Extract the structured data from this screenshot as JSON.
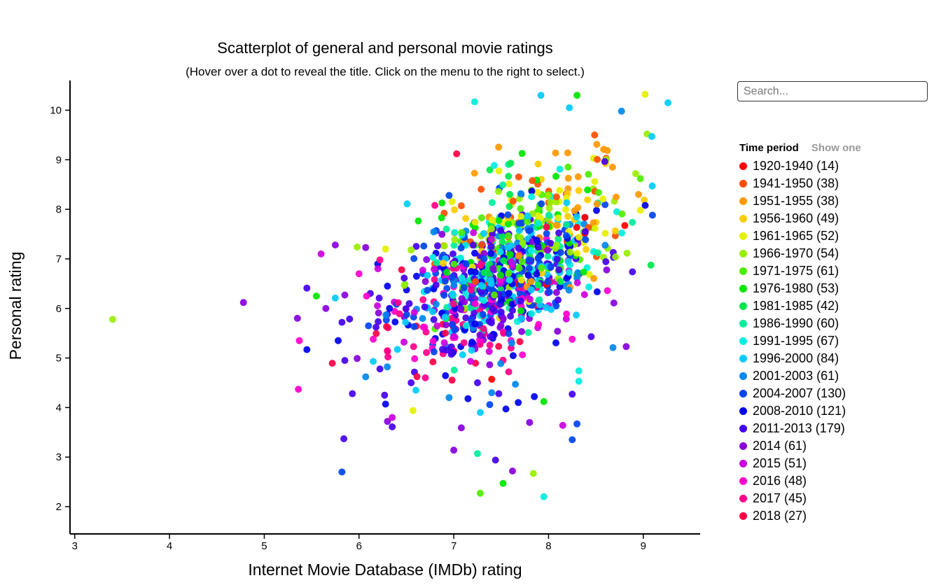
{
  "search": {
    "placeholder": "Search..."
  },
  "legend": {
    "title": "Time period",
    "show_one_label": "Show one"
  },
  "chart_data": {
    "type": "scatter",
    "title": "Scatterplot of general and personal movie ratings",
    "subtitle": "(Hover over a dot to reveal the title. Click on the menu to the right to select.)",
    "xlabel": "Internet Movie Database (IMDb) rating",
    "ylabel": "Personal rating",
    "xlim": [
      2.95,
      9.6
    ],
    "ylim": [
      1.45,
      10.6
    ],
    "x_ticks": [
      3,
      4,
      5,
      6,
      7,
      8,
      9
    ],
    "y_ticks": [
      2,
      3,
      4,
      5,
      6,
      7,
      8,
      9,
      10
    ],
    "grid": false,
    "legend_position": "right",
    "series": [
      {
        "label": "1920-1940 (14)",
        "color": "#ff0000",
        "count": 14
      },
      {
        "label": "1941-1950 (38)",
        "color": "#ff4d00",
        "count": 38
      },
      {
        "label": "1951-1955 (38)",
        "color": "#ff9900",
        "count": 38
      },
      {
        "label": "1956-1960 (49)",
        "color": "#ffcc00",
        "count": 49
      },
      {
        "label": "1961-1965 (52)",
        "color": "#e6f000",
        "count": 52
      },
      {
        "label": "1966-1970 (54)",
        "color": "#99ee00",
        "count": 54
      },
      {
        "label": "1971-1975 (61)",
        "color": "#4dee00",
        "count": 61
      },
      {
        "label": "1976-1980 (53)",
        "color": "#00e600",
        "count": 53
      },
      {
        "label": "1981-1985 (42)",
        "color": "#00e64d",
        "count": 42
      },
      {
        "label": "1986-1990 (60)",
        "color": "#00ee99",
        "count": 60
      },
      {
        "label": "1991-1995 (67)",
        "color": "#00eedd",
        "count": 67
      },
      {
        "label": "1996-2000 (84)",
        "color": "#00ccff",
        "count": 84
      },
      {
        "label": "2001-2003 (61)",
        "color": "#0088ee",
        "count": 61
      },
      {
        "label": "2004-2007 (130)",
        "color": "#0044ee",
        "count": 130
      },
      {
        "label": "2008-2010 (121)",
        "color": "#0000ee",
        "count": 121
      },
      {
        "label": "2011-2013 (179)",
        "color": "#4400ee",
        "count": 179
      },
      {
        "label": "2014 (61)",
        "color": "#8800dd",
        "count": 61
      },
      {
        "label": "2015 (51)",
        "color": "#cc00dd",
        "count": 51
      },
      {
        "label": "2016 (48)",
        "color": "#ff00cc",
        "count": 48
      },
      {
        "label": "2017 (45)",
        "color": "#ff0088",
        "count": 45
      },
      {
        "label": "2018 (27)",
        "color": "#ff0044",
        "count": 27
      }
    ],
    "points": [
      [
        3.4,
        5.78,
        5
      ],
      [
        4.78,
        6.12,
        16
      ],
      [
        5.36,
        4.37,
        18
      ],
      [
        5.82,
        2.7,
        13
      ],
      [
        5.84,
        3.37,
        15
      ],
      [
        7.22,
        10.17,
        10
      ],
      [
        7.92,
        10.3,
        11
      ],
      [
        8.3,
        10.3,
        7
      ],
      [
        9.02,
        10.32,
        4
      ],
      [
        9.26,
        10.15,
        11
      ],
      [
        8.77,
        9.98,
        12
      ],
      [
        8.22,
        10.05,
        11
      ],
      [
        7.28,
        2.27,
        6
      ],
      [
        7.52,
        2.47,
        7
      ],
      [
        7.95,
        2.2,
        10
      ],
      [
        7.84,
        2.67,
        5
      ],
      [
        7.25,
        3.07,
        9
      ],
      [
        7.0,
        3.14,
        16
      ],
      [
        7.44,
        2.94,
        15
      ],
      [
        7.62,
        2.72,
        16
      ],
      [
        8.25,
        3.35,
        13
      ],
      [
        8.3,
        3.67,
        13
      ],
      [
        8.15,
        3.64,
        17
      ],
      [
        7.85,
        4.22,
        14
      ],
      [
        7.95,
        4.12,
        7
      ],
      [
        8.25,
        4.27,
        15
      ],
      [
        8.32,
        4.53,
        10
      ],
      [
        8.32,
        4.74,
        10
      ],
      [
        8.68,
        5.21,
        12
      ],
      [
        8.82,
        5.23,
        16
      ],
      [
        8.69,
        6.11,
        16
      ],
      [
        8.45,
        5.43,
        15
      ],
      [
        8.25,
        5.38,
        18
      ],
      [
        8.95,
        8.3,
        2
      ],
      [
        9.04,
        9.52,
        5
      ],
      [
        9.09,
        9.47,
        11
      ],
      [
        9.02,
        8.08,
        14
      ],
      [
        8.97,
        7.98,
        4
      ],
      [
        8.92,
        8.72,
        5
      ],
      [
        8.97,
        8.62,
        6
      ],
      [
        5.75,
        7.28,
        16
      ],
      [
        5.98,
        7.24,
        5
      ],
      [
        6.07,
        7.23,
        16
      ],
      [
        6.28,
        7.2,
        4
      ],
      [
        6.22,
        6.98,
        19
      ],
      [
        6.0,
        6.7,
        18
      ],
      [
        6.2,
        6.8,
        17
      ],
      [
        5.45,
        6.41,
        15
      ],
      [
        5.55,
        6.25,
        7
      ],
      [
        5.75,
        6.21,
        11
      ],
      [
        5.85,
        6.27,
        16
      ],
      [
        6.08,
        6.25,
        18
      ],
      [
        5.65,
        6.0,
        16
      ],
      [
        5.82,
        5.72,
        15
      ],
      [
        5.35,
        5.8,
        16
      ],
      [
        5.37,
        5.35,
        18
      ],
      [
        5.45,
        5.17,
        14
      ],
      [
        5.78,
        5.35,
        14
      ],
      [
        5.85,
        4.95,
        15
      ],
      [
        5.98,
        4.99,
        16
      ],
      [
        5.93,
        4.28,
        15
      ],
      [
        6.07,
        4.62,
        12
      ],
      [
        6.15,
        4.93,
        11
      ],
      [
        6.22,
        4.78,
        15
      ],
      [
        6.27,
        4.25,
        15
      ],
      [
        6.28,
        4.07,
        14
      ],
      [
        6.3,
        3.72,
        16
      ],
      [
        6.35,
        3.8,
        17
      ],
      [
        6.35,
        3.61,
        15
      ],
      [
        6.57,
        3.94,
        4
      ],
      [
        6.95,
        4.2,
        12
      ],
      [
        7.08,
        3.59,
        16
      ],
      [
        7.15,
        4.18,
        14
      ],
      [
        7.28,
        3.9,
        11
      ],
      [
        7.38,
        4.06,
        13
      ],
      [
        7.55,
        3.97,
        14
      ],
      [
        7.68,
        4.1,
        14
      ],
      [
        7.8,
        3.7,
        16
      ],
      [
        7.4,
        4.3,
        12
      ],
      [
        7.65,
        4.47,
        12
      ],
      [
        7.25,
        4.5,
        15
      ],
      [
        7.4,
        4.57,
        0
      ],
      [
        7.58,
        4.72,
        19
      ],
      [
        6.7,
        4.6,
        19
      ],
      [
        6.55,
        4.5,
        15
      ],
      [
        6.6,
        4.35,
        11
      ],
      [
        5.6,
        7.1,
        17
      ],
      [
        6.8,
        8.08,
        19
      ],
      [
        7.03,
        9.12,
        20
      ],
      [
        6.95,
        8.28,
        13
      ],
      [
        6.15,
        5.38,
        18
      ],
      [
        6.1,
        5.65,
        13
      ],
      [
        6.3,
        6.45,
        14
      ],
      [
        6.45,
        6.78,
        20
      ],
      [
        6.55,
        7.18,
        5
      ]
    ],
    "cluster": {
      "center": [
        7.62,
        6.95
      ],
      "spread": [
        0.5,
        0.85
      ],
      "count": 1100
    }
  }
}
